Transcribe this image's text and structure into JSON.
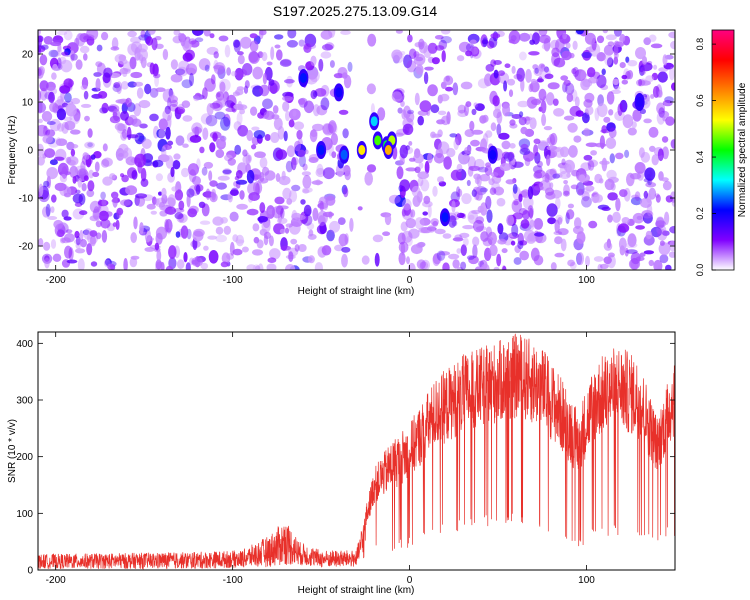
{
  "title": "S197.2025.275.13.09.G14",
  "chart_data": [
    {
      "type": "heatmap",
      "title": "S197.2025.275.13.09.G14",
      "xlabel": "Height of straight line (km)",
      "ylabel": "Frequency (Hz)",
      "xlim": [
        -210,
        150
      ],
      "ylim": [
        -25,
        25
      ],
      "xticks": [
        -200,
        -100,
        0,
        100
      ],
      "yticks": [
        -20,
        -10,
        0,
        10,
        20
      ],
      "colorbar": {
        "label": "Normalized spectral amplitude",
        "range": [
          0,
          0.85
        ],
        "ticks": [
          0.0,
          0.2,
          0.4,
          0.6,
          0.8
        ],
        "colormap": [
          "#ffffff",
          "#8000ff",
          "#0000ff",
          "#00ffff",
          "#00ff00",
          "#ffff00",
          "#ff8000",
          "#ff0000",
          "#ff0080"
        ]
      },
      "gap_regions_km": [
        [
          -35,
          -8
        ]
      ],
      "hotspots": [
        {
          "x": -60,
          "f": 15,
          "amp": 0.22
        },
        {
          "x": -40,
          "f": 12,
          "amp": 0.2
        },
        {
          "x": -50,
          "f": 0,
          "amp": 0.22
        },
        {
          "x": -37,
          "f": -1,
          "amp": 0.25
        },
        {
          "x": -27,
          "f": 0,
          "amp": 0.55
        },
        {
          "x": -20,
          "f": 6,
          "amp": 0.3
        },
        {
          "x": -18,
          "f": 2,
          "amp": 0.45
        },
        {
          "x": -13,
          "f": 1,
          "amp": 0.4
        },
        {
          "x": -10,
          "f": 2,
          "amp": 0.5
        },
        {
          "x": -12,
          "f": 0,
          "amp": 0.6
        },
        {
          "x": 20,
          "f": -14,
          "amp": 0.22
        },
        {
          "x": 47,
          "f": -1,
          "amp": 0.2
        },
        {
          "x": 130,
          "f": 10,
          "amp": 0.18
        }
      ]
    },
    {
      "type": "line",
      "xlabel": "Height of straight line (km)",
      "ylabel": "SNR (10 * v/v)",
      "xlim": [
        -210,
        150
      ],
      "ylim": [
        0,
        420
      ],
      "xticks": [
        -200,
        -100,
        0,
        100
      ],
      "yticks": [
        0,
        100,
        200,
        300,
        400
      ],
      "color": "#e8302a",
      "envelope": [
        {
          "x": -210,
          "low": 2,
          "high": 28
        },
        {
          "x": -120,
          "low": 2,
          "high": 32
        },
        {
          "x": -95,
          "low": 4,
          "high": 35
        },
        {
          "x": -80,
          "low": 5,
          "high": 60
        },
        {
          "x": -70,
          "low": 8,
          "high": 90
        },
        {
          "x": -62,
          "low": 8,
          "high": 50
        },
        {
          "x": -50,
          "low": 4,
          "high": 35
        },
        {
          "x": -30,
          "low": 5,
          "high": 35
        },
        {
          "x": -20,
          "low": 40,
          "high": 180
        },
        {
          "x": -10,
          "low": 30,
          "high": 230
        },
        {
          "x": 0,
          "low": 40,
          "high": 260
        },
        {
          "x": 15,
          "low": 60,
          "high": 340
        },
        {
          "x": 30,
          "low": 70,
          "high": 380
        },
        {
          "x": 50,
          "low": 80,
          "high": 405
        },
        {
          "x": 62,
          "low": 80,
          "high": 420
        },
        {
          "x": 75,
          "low": 70,
          "high": 395
        },
        {
          "x": 88,
          "low": 40,
          "high": 330
        },
        {
          "x": 95,
          "low": 30,
          "high": 280
        },
        {
          "x": 105,
          "low": 60,
          "high": 370
        },
        {
          "x": 118,
          "low": 60,
          "high": 400
        },
        {
          "x": 130,
          "low": 60,
          "high": 370
        },
        {
          "x": 140,
          "low": 50,
          "high": 270
        },
        {
          "x": 150,
          "low": 60,
          "high": 385
        }
      ]
    }
  ]
}
